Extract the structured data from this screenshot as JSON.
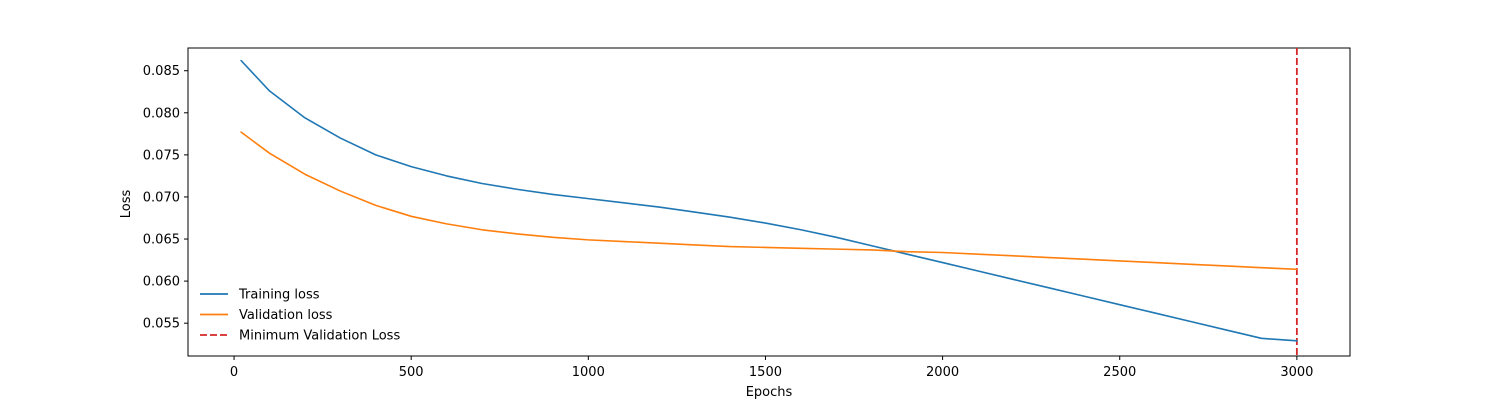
{
  "chart_data": {
    "type": "line",
    "title": "",
    "xlabel": "Epochs",
    "ylabel": "Loss",
    "xlim": [
      -130,
      3150
    ],
    "ylim": [
      0.0511,
      0.0877
    ],
    "xticks": [
      0,
      500,
      1000,
      1500,
      2000,
      2500,
      3000
    ],
    "xtick_labels": [
      "0",
      "500",
      "1000",
      "1500",
      "2000",
      "2500",
      "3000"
    ],
    "yticks": [
      0.055,
      0.06,
      0.065,
      0.07,
      0.075,
      0.08,
      0.085
    ],
    "ytick_labels": [
      "0.055",
      "0.060",
      "0.065",
      "0.070",
      "0.075",
      "0.080",
      "0.085"
    ],
    "grid": false,
    "legend_position": "lower-left",
    "x": [
      20,
      100,
      200,
      300,
      400,
      500,
      600,
      700,
      800,
      900,
      1000,
      1100,
      1200,
      1300,
      1400,
      1500,
      1600,
      1700,
      1800,
      1900,
      2000,
      2100,
      2200,
      2300,
      2400,
      2500,
      2600,
      2700,
      2800,
      2900,
      3000
    ],
    "series": [
      {
        "name": "Training loss",
        "color": "#1f77b4",
        "style": "solid",
        "values": [
          0.0862,
          0.0826,
          0.0794,
          0.077,
          0.075,
          0.0736,
          0.0725,
          0.0716,
          0.0709,
          0.0703,
          0.0698,
          0.0693,
          0.0688,
          0.0682,
          0.0676,
          0.0669,
          0.0661,
          0.0652,
          0.0642,
          0.0632,
          0.0622,
          0.0612,
          0.0602,
          0.0592,
          0.0582,
          0.0572,
          0.0562,
          0.0552,
          0.0542,
          0.0532,
          0.0529
        ]
      },
      {
        "name": "Validation loss",
        "color": "#ff7f0e",
        "style": "solid",
        "values": [
          0.0777,
          0.0752,
          0.0727,
          0.0707,
          0.069,
          0.0677,
          0.0668,
          0.0661,
          0.0656,
          0.0652,
          0.0649,
          0.0647,
          0.0645,
          0.0643,
          0.0641,
          0.064,
          0.0639,
          0.0638,
          0.0637,
          0.0635,
          0.0634,
          0.0632,
          0.063,
          0.0628,
          0.0626,
          0.0624,
          0.0622,
          0.062,
          0.0618,
          0.0616,
          0.0614
        ]
      }
    ],
    "vlines": [
      {
        "name": "Minimum Validation Loss",
        "x": 3000,
        "color": "#d62728",
        "style": "dashed"
      }
    ]
  }
}
